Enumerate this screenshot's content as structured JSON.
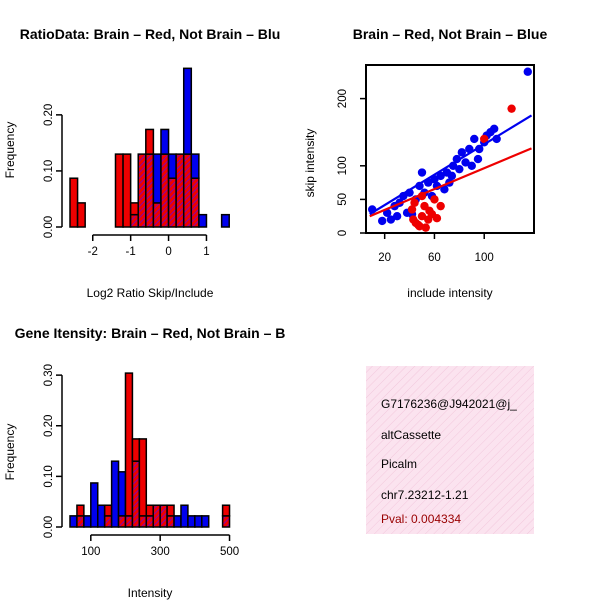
{
  "colors": {
    "red": "#ee0000",
    "blue": "#0000ee",
    "overlap": "#9900aa",
    "panel_bg": "#f8dcea",
    "pval": "#990000"
  },
  "chart_data": [
    {
      "type": "bar",
      "id": "ratio_hist",
      "title": "RatioData: Brain – Red, Not Brain – Blu",
      "xlabel": "Log2 Ratio Skip/Include",
      "ylabel": "Frequency",
      "xlim": [
        -2.6,
        1.7
      ],
      "ylim": [
        0,
        0.28
      ],
      "xticks": [
        -2,
        -1,
        0,
        1
      ],
      "yticks": [
        0.0,
        0.1,
        0.2
      ],
      "bin_width": 0.2,
      "series": [
        {
          "name": "Brain",
          "color": "red",
          "bins": [
            {
              "x0": -2.6,
              "v": 0.087
            },
            {
              "x0": -2.4,
              "v": 0.043
            },
            {
              "x0": -1.4,
              "v": 0.13
            },
            {
              "x0": -1.2,
              "v": 0.13
            },
            {
              "x0": -1.0,
              "v": 0.043
            },
            {
              "x0": -0.8,
              "v": 0.13
            },
            {
              "x0": -0.6,
              "v": 0.174
            },
            {
              "x0": -0.4,
              "v": 0.043
            },
            {
              "x0": -0.2,
              "v": 0.13
            },
            {
              "x0": 0.0,
              "v": 0.087
            },
            {
              "x0": 0.2,
              "v": 0.13
            },
            {
              "x0": 0.4,
              "v": 0.13
            },
            {
              "x0": 0.6,
              "v": 0.087
            }
          ]
        },
        {
          "name": "Not Brain",
          "color": "blue",
          "bins": [
            {
              "x0": -1.0,
              "v": 0.022
            },
            {
              "x0": -0.8,
              "v": 0.13
            },
            {
              "x0": -0.6,
              "v": 0.13
            },
            {
              "x0": -0.4,
              "v": 0.13
            },
            {
              "x0": -0.2,
              "v": 0.174
            },
            {
              "x0": 0.0,
              "v": 0.13
            },
            {
              "x0": 0.2,
              "v": 0.13
            },
            {
              "x0": 0.4,
              "v": 0.283
            },
            {
              "x0": 0.6,
              "v": 0.13
            },
            {
              "x0": 0.8,
              "v": 0.022
            },
            {
              "x0": 1.4,
              "v": 0.022
            }
          ]
        }
      ]
    },
    {
      "type": "scatter",
      "id": "intensity_scatter",
      "title": "Brain – Red, Not Brain – Blue",
      "xlabel": "include intensity",
      "ylabel": "skip intensity",
      "xlim": [
        5,
        140
      ],
      "ylim": [
        0,
        250
      ],
      "xticks": [
        20,
        60,
        100
      ],
      "yticks": [
        0,
        50,
        100,
        200
      ],
      "series": [
        {
          "name": "Brain",
          "color": "red",
          "points": [
            [
              42,
              35
            ],
            [
              45,
              15
            ],
            [
              48,
              10
            ],
            [
              50,
              25
            ],
            [
              52,
              40
            ],
            [
              55,
              20
            ],
            [
              58,
              28
            ],
            [
              47,
              12
            ],
            [
              53,
              8
            ],
            [
              60,
              50
            ],
            [
              65,
              40
            ],
            [
              62,
              22
            ],
            [
              44,
              45
            ],
            [
              56,
              33
            ],
            [
              100,
              140
            ],
            [
              122,
              185
            ],
            [
              50,
              55
            ],
            [
              43,
              20
            ]
          ],
          "fit": [
            [
              8,
              25
            ],
            [
              138,
              126
            ]
          ]
        },
        {
          "name": "Not Brain",
          "color": "blue",
          "points": [
            [
              10,
              35
            ],
            [
              18,
              18
            ],
            [
              22,
              30
            ],
            [
              28,
              40
            ],
            [
              30,
              25
            ],
            [
              32,
              45
            ],
            [
              35,
              55
            ],
            [
              38,
              30
            ],
            [
              40,
              60
            ],
            [
              42,
              28
            ],
            [
              45,
              50
            ],
            [
              48,
              70
            ],
            [
              50,
              90
            ],
            [
              52,
              60
            ],
            [
              55,
              75
            ],
            [
              58,
              55
            ],
            [
              60,
              80
            ],
            [
              62,
              70
            ],
            [
              65,
              85
            ],
            [
              68,
              65
            ],
            [
              70,
              90
            ],
            [
              72,
              75
            ],
            [
              75,
              100
            ],
            [
              78,
              110
            ],
            [
              80,
              95
            ],
            [
              82,
              120
            ],
            [
              85,
              105
            ],
            [
              88,
              125
            ],
            [
              90,
              100
            ],
            [
              92,
              140
            ],
            [
              95,
              110
            ],
            [
              100,
              135
            ],
            [
              102,
              145
            ],
            [
              105,
              150
            ],
            [
              108,
              155
            ],
            [
              110,
              140
            ],
            [
              96,
              125
            ],
            [
              74,
              85
            ],
            [
              135,
              240
            ],
            [
              25,
              20
            ]
          ],
          "fit": [
            [
              8,
              28
            ],
            [
              138,
              175
            ]
          ]
        }
      ]
    },
    {
      "type": "bar",
      "id": "intensity_hist",
      "title": "Gene Itensity: Brain – Red, Not Brain – B",
      "xlabel": "Intensity",
      "ylabel": "Frequency",
      "xlim": [
        40,
        510
      ],
      "ylim": [
        0,
        0.32
      ],
      "xticks": [
        100,
        300,
        500
      ],
      "yticks": [
        0.0,
        0.1,
        0.2,
        0.3
      ],
      "bin_width": 20,
      "series": [
        {
          "name": "Brain",
          "color": "red",
          "bins": [
            {
              "x0": 60,
              "v": 0.043
            },
            {
              "x0": 140,
              "v": 0.043
            },
            {
              "x0": 180,
              "v": 0.022
            },
            {
              "x0": 200,
              "v": 0.304
            },
            {
              "x0": 220,
              "v": 0.174
            },
            {
              "x0": 240,
              "v": 0.174
            },
            {
              "x0": 260,
              "v": 0.043
            },
            {
              "x0": 280,
              "v": 0.043
            },
            {
              "x0": 300,
              "v": 0.043
            },
            {
              "x0": 320,
              "v": 0.043
            },
            {
              "x0": 480,
              "v": 0.043
            }
          ]
        },
        {
          "name": "Not Brain",
          "color": "blue",
          "bins": [
            {
              "x0": 40,
              "v": 0.022
            },
            {
              "x0": 60,
              "v": 0.022
            },
            {
              "x0": 80,
              "v": 0.022
            },
            {
              "x0": 100,
              "v": 0.087
            },
            {
              "x0": 120,
              "v": 0.043
            },
            {
              "x0": 140,
              "v": 0.022
            },
            {
              "x0": 160,
              "v": 0.13
            },
            {
              "x0": 180,
              "v": 0.109
            },
            {
              "x0": 200,
              "v": 0.022
            },
            {
              "x0": 220,
              "v": 0.13
            },
            {
              "x0": 240,
              "v": 0.022
            },
            {
              "x0": 260,
              "v": 0.022
            },
            {
              "x0": 280,
              "v": 0.043
            },
            {
              "x0": 300,
              "v": 0.043
            },
            {
              "x0": 320,
              "v": 0.022
            },
            {
              "x0": 340,
              "v": 0.022
            },
            {
              "x0": 360,
              "v": 0.043
            },
            {
              "x0": 380,
              "v": 0.022
            },
            {
              "x0": 400,
              "v": 0.022
            },
            {
              "x0": 420,
              "v": 0.022
            },
            {
              "x0": 480,
              "v": 0.022
            }
          ]
        }
      ]
    }
  ],
  "info_panel": {
    "event_id": "G7176236@J942021@j_",
    "event_type": "altCassette",
    "gene": "Picalm",
    "location": "chr7.23212-1.21",
    "pval": "Pval: 0.004334"
  }
}
